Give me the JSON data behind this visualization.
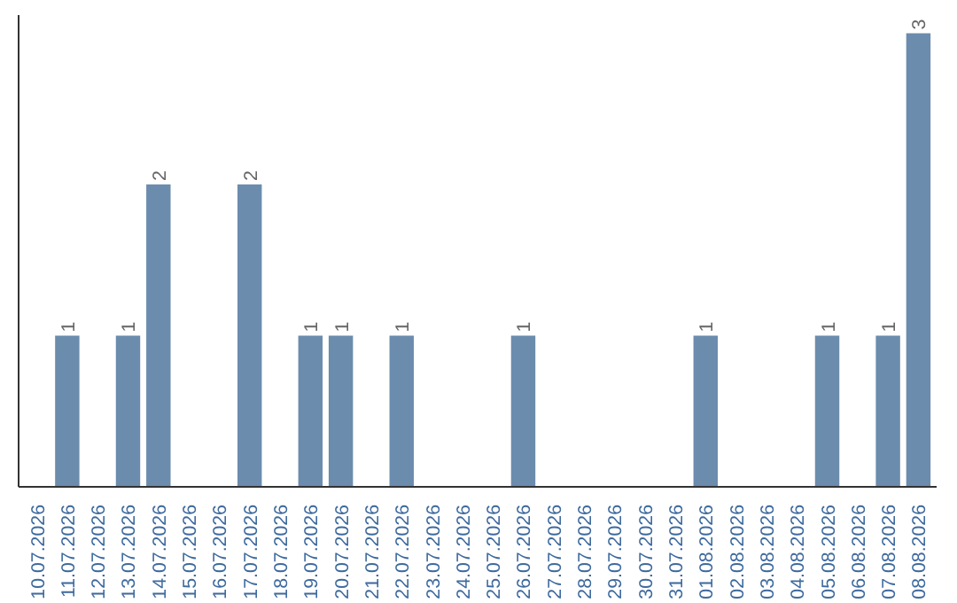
{
  "chart_data": {
    "type": "bar",
    "categories": [
      "10.07.2026",
      "11.07.2026",
      "12.07.2026",
      "13.07.2026",
      "14.07.2026",
      "15.07.2026",
      "16.07.2026",
      "17.07.2026",
      "18.07.2026",
      "19.07.2026",
      "20.07.2026",
      "21.07.2026",
      "22.07.2026",
      "23.07.2026",
      "24.07.2026",
      "25.07.2026",
      "26.07.2026",
      "27.07.2026",
      "28.07.2026",
      "29.07.2026",
      "30.07.2026",
      "31.07.2026",
      "01.08.2026",
      "02.08.2026",
      "03.08.2026",
      "04.08.2026",
      "05.08.2026",
      "06.08.2026",
      "07.08.2026",
      "08.08.2026"
    ],
    "values": [
      0,
      1,
      0,
      1,
      2,
      0,
      0,
      2,
      0,
      1,
      1,
      0,
      1,
      0,
      0,
      0,
      1,
      0,
      0,
      0,
      0,
      0,
      1,
      0,
      0,
      0,
      1,
      0,
      1,
      3
    ],
    "value_labels": [
      null,
      "1",
      null,
      "1",
      "2",
      null,
      null,
      "2",
      null,
      "1",
      "1",
      null,
      "1",
      null,
      null,
      null,
      "1",
      null,
      null,
      null,
      null,
      null,
      "1",
      null,
      null,
      null,
      "1",
      null,
      "1",
      "3"
    ],
    "color": "#6b8cad",
    "grid": false,
    "tick_labels": "x"
  }
}
